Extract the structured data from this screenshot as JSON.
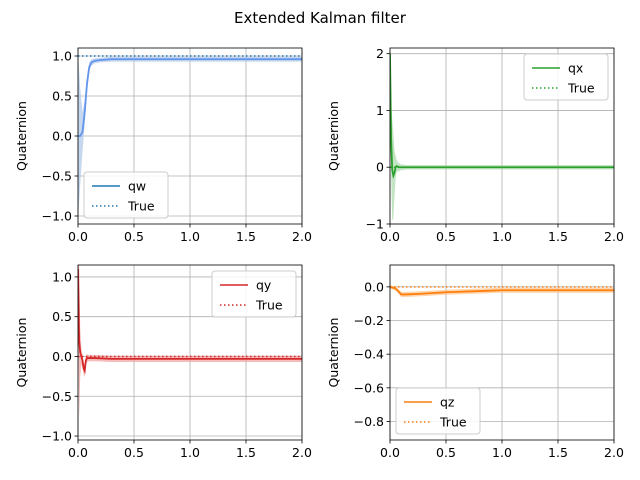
{
  "title": "Extended Kalman filter",
  "chart_data": [
    {
      "type": "line",
      "ylabel": "Quaternion",
      "xlim": [
        0,
        2.0
      ],
      "ylim": [
        -1.1,
        1.1
      ],
      "xticks": [
        "0.0",
        "0.5",
        "1.0",
        "1.5",
        "2.0"
      ],
      "yticks": [
        -1.0,
        -0.5,
        0.0,
        0.5,
        1.0
      ],
      "ytick_labels": [
        "−1.0",
        "−0.5",
        "0.0",
        "0.5",
        "1.0"
      ],
      "grid": true,
      "legend_position": "lower-left",
      "color": "#1f77b4",
      "band_color": "#aec7e8",
      "mean_color": "#6495ED",
      "series": [
        {
          "name": "qw",
          "style": "solid",
          "x": [
            0,
            0.02,
            0.04,
            0.06,
            0.08,
            0.1,
            0.12,
            0.15,
            0.2,
            0.3,
            0.5,
            1.0,
            1.5,
            2.0
          ],
          "y": [
            0.0,
            0.0,
            0.05,
            0.3,
            0.65,
            0.86,
            0.92,
            0.94,
            0.95,
            0.96,
            0.96,
            0.96,
            0.96,
            0.96
          ],
          "band": [
            1.05,
            0.6,
            0.25,
            0.15,
            0.1,
            0.06,
            0.04,
            0.03,
            0.03,
            0.03,
            0.03,
            0.03,
            0.03,
            0.03
          ]
        },
        {
          "name": "True",
          "style": "dotted",
          "x": [
            0,
            2.0
          ],
          "y": [
            1.0,
            1.0
          ]
        }
      ]
    },
    {
      "type": "line",
      "ylabel": "Quaternion",
      "xlim": [
        0,
        2.0
      ],
      "ylim": [
        -1.0,
        2.1
      ],
      "xticks": [
        "0.0",
        "0.5",
        "1.0",
        "1.5",
        "2.0"
      ],
      "yticks": [
        -1,
        0,
        1,
        2
      ],
      "ytick_labels": [
        "−1",
        "0",
        "1",
        "2"
      ],
      "grid": true,
      "legend_position": "upper-right",
      "color": "#2ca02c",
      "band_color": "#a6d8a6",
      "mean_color": "#2ca02c",
      "series": [
        {
          "name": "qx",
          "style": "solid",
          "x": [
            0,
            0.01,
            0.02,
            0.03,
            0.04,
            0.05,
            0.06,
            0.08,
            0.1,
            0.15,
            0.3,
            1.0,
            2.0
          ],
          "y": [
            2.0,
            0.5,
            -0.05,
            -0.15,
            -0.1,
            0.0,
            0.02,
            0.0,
            0.0,
            0.0,
            0.0,
            0.0,
            0.0
          ],
          "band": [
            0.1,
            0.6,
            0.9,
            0.75,
            0.4,
            0.2,
            0.1,
            0.07,
            0.05,
            0.04,
            0.04,
            0.04,
            0.04
          ]
        },
        {
          "name": "True",
          "style": "dotted",
          "x": [
            0,
            2.0
          ],
          "y": [
            0.0,
            0.0
          ]
        }
      ]
    },
    {
      "type": "line",
      "ylabel": "Quaternion",
      "xlim": [
        0,
        2.0
      ],
      "ylim": [
        -1.05,
        1.15
      ],
      "xticks": [
        "0.0",
        "0.5",
        "1.0",
        "1.5",
        "2.0"
      ],
      "yticks": [
        -1.0,
        -0.5,
        0.0,
        0.5,
        1.0
      ],
      "ytick_labels": [
        "−1.0",
        "−0.5",
        "0.0",
        "0.5",
        "1.0"
      ],
      "grid": true,
      "legend_position": "upper-right",
      "color": "#d62728",
      "band_color": "#f2a0a0",
      "mean_color": "#d62728",
      "series": [
        {
          "name": "qy",
          "style": "solid",
          "x": [
            0,
            0.01,
            0.02,
            0.03,
            0.04,
            0.05,
            0.06,
            0.07,
            0.08,
            0.1,
            0.15,
            0.3,
            1.0,
            2.0
          ],
          "y": [
            1.1,
            0.2,
            0.05,
            0.0,
            -0.05,
            -0.15,
            -0.18,
            -0.05,
            -0.02,
            -0.02,
            -0.02,
            -0.03,
            -0.03,
            -0.03
          ],
          "band": [
            0.1,
            1.0,
            0.3,
            0.1,
            0.08,
            0.08,
            0.08,
            0.06,
            0.05,
            0.04,
            0.04,
            0.04,
            0.04,
            0.04
          ]
        },
        {
          "name": "True",
          "style": "dotted",
          "x": [
            0,
            2.0
          ],
          "y": [
            0.0,
            0.0
          ]
        }
      ]
    },
    {
      "type": "line",
      "ylabel": "Quaternion",
      "xlim": [
        0,
        2.0
      ],
      "ylim": [
        -0.91,
        0.13
      ],
      "xticks": [
        "0.0",
        "0.5",
        "1.0",
        "1.5",
        "2.0"
      ],
      "yticks": [
        -0.8,
        -0.6,
        -0.4,
        -0.2,
        0.0
      ],
      "ytick_labels": [
        "−0.8",
        "−0.6",
        "−0.4",
        "−0.2",
        "0.0"
      ],
      "grid": true,
      "legend_position": "lower-left",
      "color": "#ff7f0e",
      "band_color": "#ffc58a",
      "mean_color": "#ff7f0e",
      "series": [
        {
          "name": "qz",
          "style": "solid",
          "x": [
            0,
            0.05,
            0.08,
            0.1,
            0.15,
            0.3,
            0.5,
            0.8,
            1.0,
            1.5,
            2.0
          ],
          "y": [
            0.0,
            -0.01,
            -0.03,
            -0.045,
            -0.045,
            -0.04,
            -0.032,
            -0.025,
            -0.02,
            -0.02,
            -0.02
          ],
          "band": [
            0.01,
            0.012,
            0.014,
            0.015,
            0.015,
            0.015,
            0.015,
            0.015,
            0.015,
            0.015,
            0.015
          ]
        },
        {
          "name": "True",
          "style": "dotted",
          "x": [
            0,
            2.0
          ],
          "y": [
            0.0,
            0.0
          ]
        }
      ]
    }
  ]
}
